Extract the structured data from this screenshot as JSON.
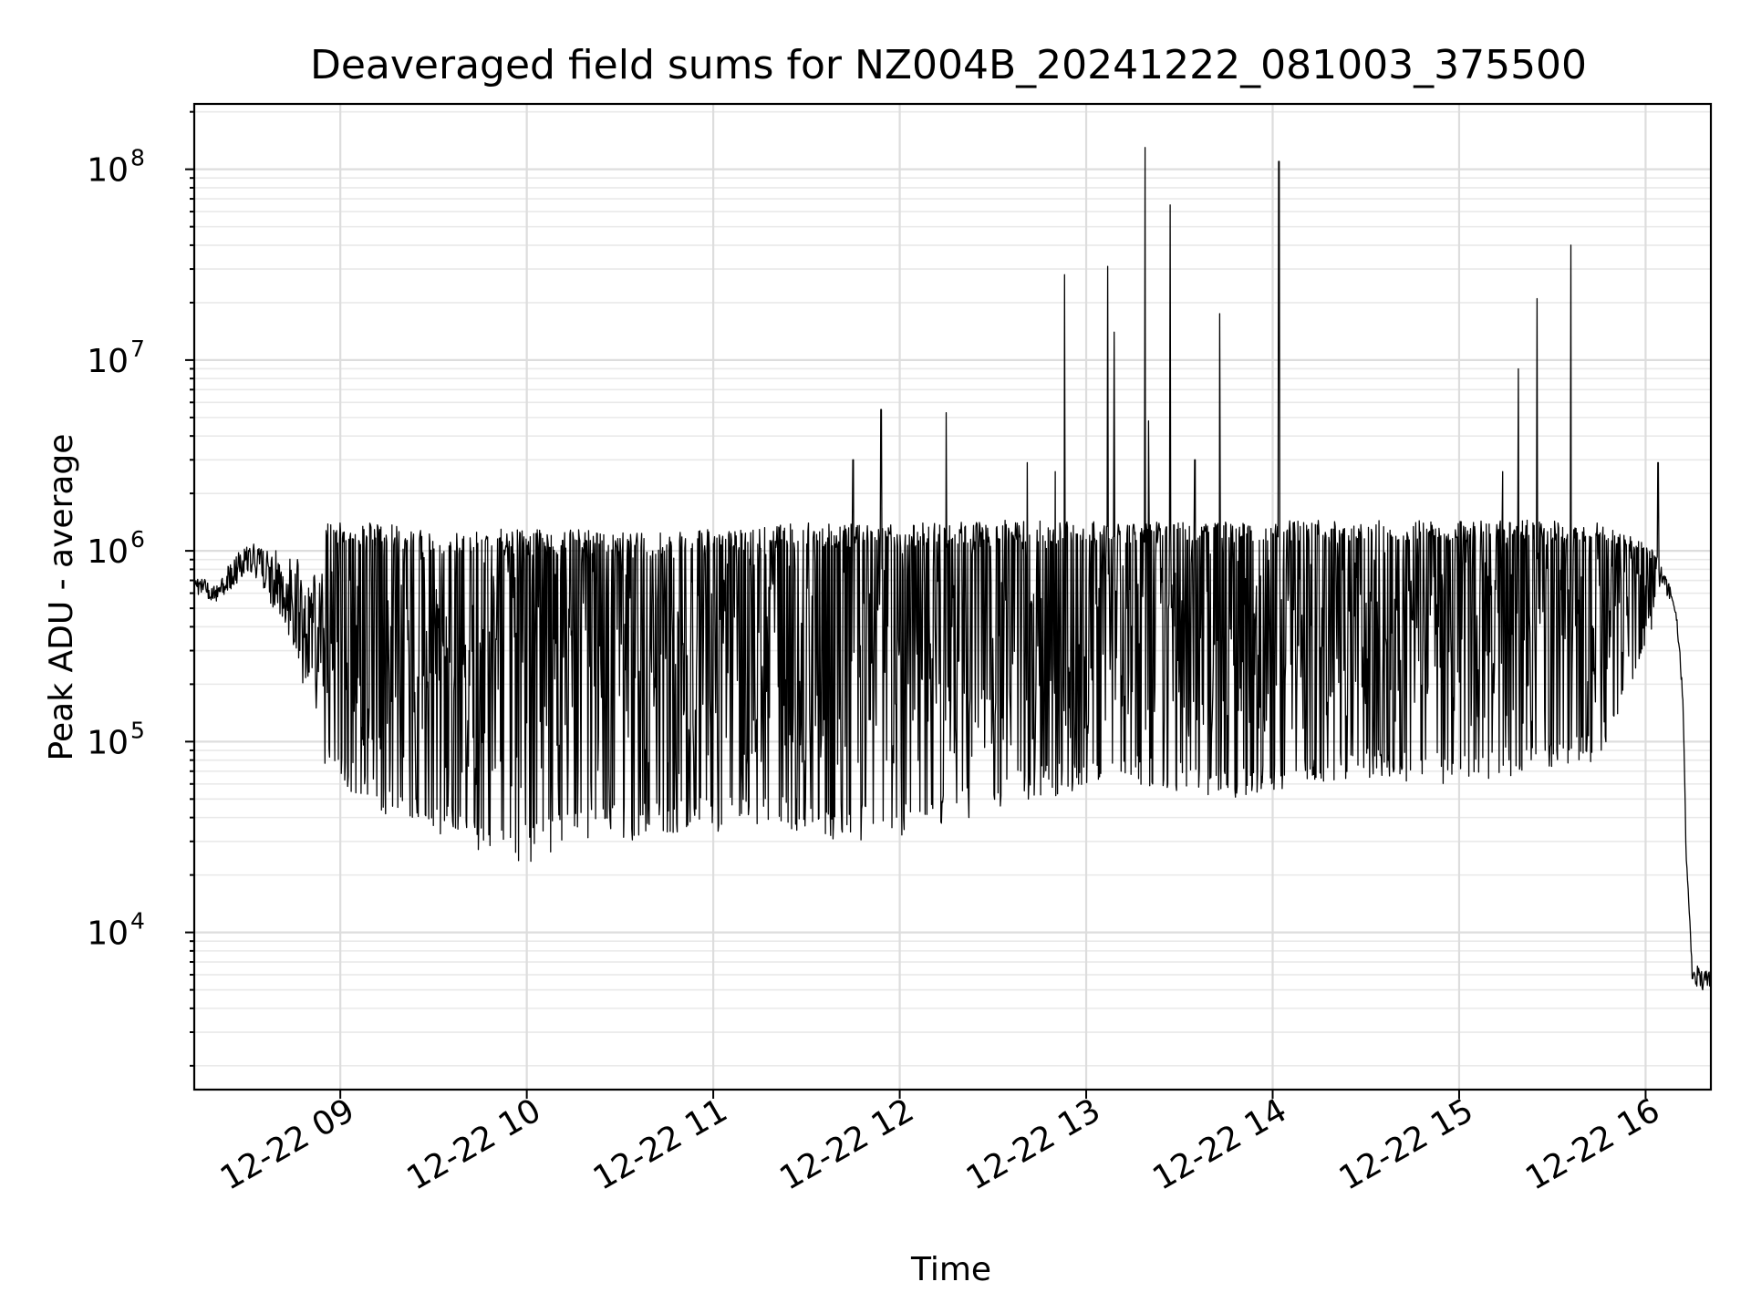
{
  "chart_data": {
    "type": "line",
    "title": "Deaveraged field sums for NZ004B_20241222_081003_375500",
    "xlabel": "Time",
    "ylabel": "Peak ADU - average",
    "yscale": "log",
    "grid": "major and minor",
    "x_tick_labels": [
      "12-22 09",
      "12-22 10",
      "12-22 11",
      "12-22 12",
      "12-22 13",
      "12-22 14",
      "12-22 15",
      "12-22 16"
    ],
    "y_tick_labels": [
      {
        "base": "10",
        "exp": "4"
      },
      {
        "base": "10",
        "exp": "5"
      },
      {
        "base": "10",
        "exp": "6"
      },
      {
        "base": "10",
        "exp": "7"
      },
      {
        "base": "10",
        "exp": "8"
      }
    ],
    "x_range": [
      "2024-12-22 08:13",
      "2024-12-22 16:21"
    ],
    "ylim": [
      1500,
      220000000
    ],
    "series_color": "#000000",
    "envelope_time": [
      "08:13",
      "08:20",
      "08:25",
      "08:30",
      "08:35",
      "08:40",
      "08:45",
      "08:50",
      "08:55",
      "09:00",
      "09:10",
      "09:20",
      "09:30",
      "09:40",
      "09:50",
      "10:00",
      "10:15",
      "10:30",
      "10:45",
      "11:00",
      "11:15",
      "11:30",
      "11:45",
      "12:00",
      "12:15",
      "12:30",
      "12:45",
      "13:00",
      "13:15",
      "13:30",
      "13:45",
      "14:00",
      "14:15",
      "14:30",
      "14:45",
      "15:00",
      "15:15",
      "15:30",
      "15:45",
      "16:00",
      "16:05",
      "16:08",
      "16:10",
      "16:12",
      "16:13",
      "16:15",
      "16:18",
      "16:21"
    ],
    "envelope_high": [
      850000,
      700000,
      1000000,
      1300000,
      1400000,
      1300000,
      1400000,
      1350000,
      1400000,
      1400000,
      1400000,
      1350000,
      1300000,
      1300000,
      1300000,
      1300000,
      1300000,
      1250000,
      1250000,
      1300000,
      1350000,
      1400000,
      1400000,
      1400000,
      1400000,
      1450000,
      1450000,
      1450000,
      1400000,
      1450000,
      1450000,
      1450000,
      1450000,
      1450000,
      1450000,
      1450000,
      1450000,
      1450000,
      1400000,
      1100000,
      900000,
      700000,
      500000,
      200000,
      30000,
      8000,
      7000,
      6500
    ],
    "envelope_low": [
      550000,
      500000,
      550000,
      700000,
      500000,
      350000,
      200000,
      90000,
      70000,
      60000,
      45000,
      35000,
      32000,
      28000,
      25000,
      23000,
      28000,
      30000,
      32000,
      33000,
      34000,
      32000,
      30000,
      30000,
      35000,
      45000,
      50000,
      55000,
      60000,
      55000,
      50000,
      55000,
      60000,
      65000,
      60000,
      60000,
      65000,
      70000,
      80000,
      300000,
      600000,
      500000,
      400000,
      150000,
      25000,
      5000,
      4500,
      5000
    ],
    "spikes": [
      {
        "time": "11:45",
        "value": 3000000
      },
      {
        "time": "11:54",
        "value": 5500000
      },
      {
        "time": "12:15",
        "value": 5300000
      },
      {
        "time": "12:41",
        "value": 2900000
      },
      {
        "time": "12:50",
        "value": 2600000
      },
      {
        "time": "12:53",
        "value": 28000000
      },
      {
        "time": "13:07",
        "value": 31000000
      },
      {
        "time": "13:09",
        "value": 14000000
      },
      {
        "time": "13:19",
        "value": 130000000
      },
      {
        "time": "13:20",
        "value": 4800000
      },
      {
        "time": "13:27",
        "value": 65000000
      },
      {
        "time": "13:35",
        "value": 3000000
      },
      {
        "time": "13:43",
        "value": 17500000
      },
      {
        "time": "14:02",
        "value": 110000000
      },
      {
        "time": "15:14",
        "value": 2600000
      },
      {
        "time": "15:19",
        "value": 9000000
      },
      {
        "time": "15:25",
        "value": 21000000
      },
      {
        "time": "15:36",
        "value": 40000000
      },
      {
        "time": "16:04",
        "value": 2900000
      }
    ]
  }
}
